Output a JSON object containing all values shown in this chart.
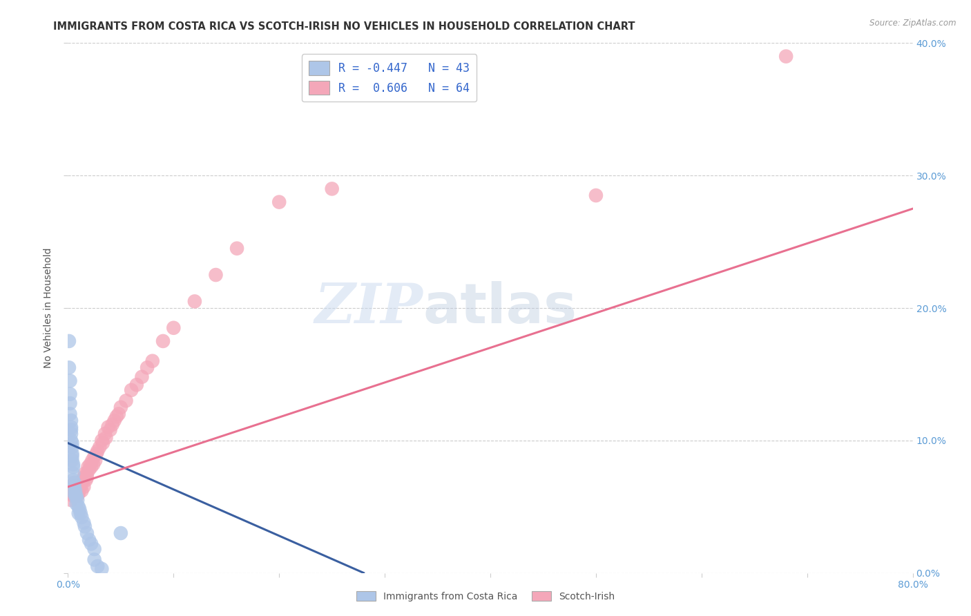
{
  "title": "IMMIGRANTS FROM COSTA RICA VS SCOTCH-IRISH NO VEHICLES IN HOUSEHOLD CORRELATION CHART",
  "source": "Source: ZipAtlas.com",
  "ylabel": "No Vehicles in Household",
  "xlim": [
    0,
    0.8
  ],
  "ylim": [
    0,
    0.4
  ],
  "xticks": [
    0.0,
    0.1,
    0.2,
    0.3,
    0.4,
    0.5,
    0.6,
    0.7,
    0.8
  ],
  "yticks": [
    0.0,
    0.1,
    0.2,
    0.3,
    0.4
  ],
  "blue_R": -0.447,
  "blue_N": 43,
  "pink_R": 0.606,
  "pink_N": 64,
  "blue_color": "#aec6e8",
  "pink_color": "#f4a7b9",
  "blue_line_color": "#3a5fa0",
  "pink_line_color": "#e87090",
  "blue_label": "Immigrants from Costa Rica",
  "pink_label": "Scotch-Irish",
  "watermark_left": "ZIP",
  "watermark_right": "atlas",
  "blue_scatter_x": [
    0.001,
    0.001,
    0.002,
    0.002,
    0.002,
    0.002,
    0.003,
    0.003,
    0.003,
    0.003,
    0.003,
    0.004,
    0.004,
    0.004,
    0.004,
    0.004,
    0.005,
    0.005,
    0.005,
    0.005,
    0.006,
    0.006,
    0.006,
    0.007,
    0.007,
    0.008,
    0.008,
    0.009,
    0.01,
    0.01,
    0.011,
    0.012,
    0.013,
    0.015,
    0.016,
    0.018,
    0.02,
    0.022,
    0.025,
    0.025,
    0.028,
    0.032,
    0.05
  ],
  "blue_scatter_y": [
    0.175,
    0.155,
    0.145,
    0.135,
    0.128,
    0.12,
    0.115,
    0.11,
    0.108,
    0.105,
    0.1,
    0.098,
    0.095,
    0.09,
    0.088,
    0.085,
    0.082,
    0.08,
    0.075,
    0.07,
    0.068,
    0.065,
    0.06,
    0.062,
    0.058,
    0.058,
    0.052,
    0.055,
    0.05,
    0.045,
    0.048,
    0.045,
    0.042,
    0.038,
    0.035,
    0.03,
    0.025,
    0.022,
    0.018,
    0.01,
    0.005,
    0.003,
    0.03
  ],
  "pink_scatter_x": [
    0.002,
    0.003,
    0.004,
    0.005,
    0.005,
    0.006,
    0.006,
    0.007,
    0.007,
    0.008,
    0.008,
    0.009,
    0.009,
    0.01,
    0.01,
    0.011,
    0.011,
    0.012,
    0.013,
    0.013,
    0.014,
    0.015,
    0.015,
    0.016,
    0.017,
    0.018,
    0.018,
    0.019,
    0.02,
    0.021,
    0.022,
    0.023,
    0.024,
    0.025,
    0.026,
    0.027,
    0.028,
    0.03,
    0.032,
    0.033,
    0.035,
    0.036,
    0.038,
    0.04,
    0.042,
    0.044,
    0.046,
    0.048,
    0.05,
    0.055,
    0.06,
    0.065,
    0.07,
    0.075,
    0.08,
    0.09,
    0.1,
    0.12,
    0.14,
    0.16,
    0.2,
    0.25,
    0.5,
    0.68
  ],
  "pink_scatter_y": [
    0.06,
    0.055,
    0.06,
    0.058,
    0.065,
    0.062,
    0.068,
    0.058,
    0.065,
    0.06,
    0.062,
    0.058,
    0.065,
    0.062,
    0.06,
    0.068,
    0.065,
    0.065,
    0.068,
    0.062,
    0.07,
    0.072,
    0.065,
    0.075,
    0.07,
    0.075,
    0.072,
    0.08,
    0.078,
    0.082,
    0.08,
    0.085,
    0.082,
    0.088,
    0.085,
    0.09,
    0.092,
    0.095,
    0.1,
    0.098,
    0.105,
    0.102,
    0.11,
    0.108,
    0.112,
    0.115,
    0.118,
    0.12,
    0.125,
    0.13,
    0.138,
    0.142,
    0.148,
    0.155,
    0.16,
    0.175,
    0.185,
    0.205,
    0.225,
    0.245,
    0.28,
    0.29,
    0.285,
    0.39
  ],
  "blue_line_x": [
    0.0,
    0.28
  ],
  "blue_line_y": [
    0.098,
    0.0
  ],
  "pink_line_x": [
    0.0,
    0.8
  ],
  "pink_line_y": [
    0.065,
    0.275
  ],
  "background_color": "#ffffff",
  "grid_color": "#cccccc"
}
